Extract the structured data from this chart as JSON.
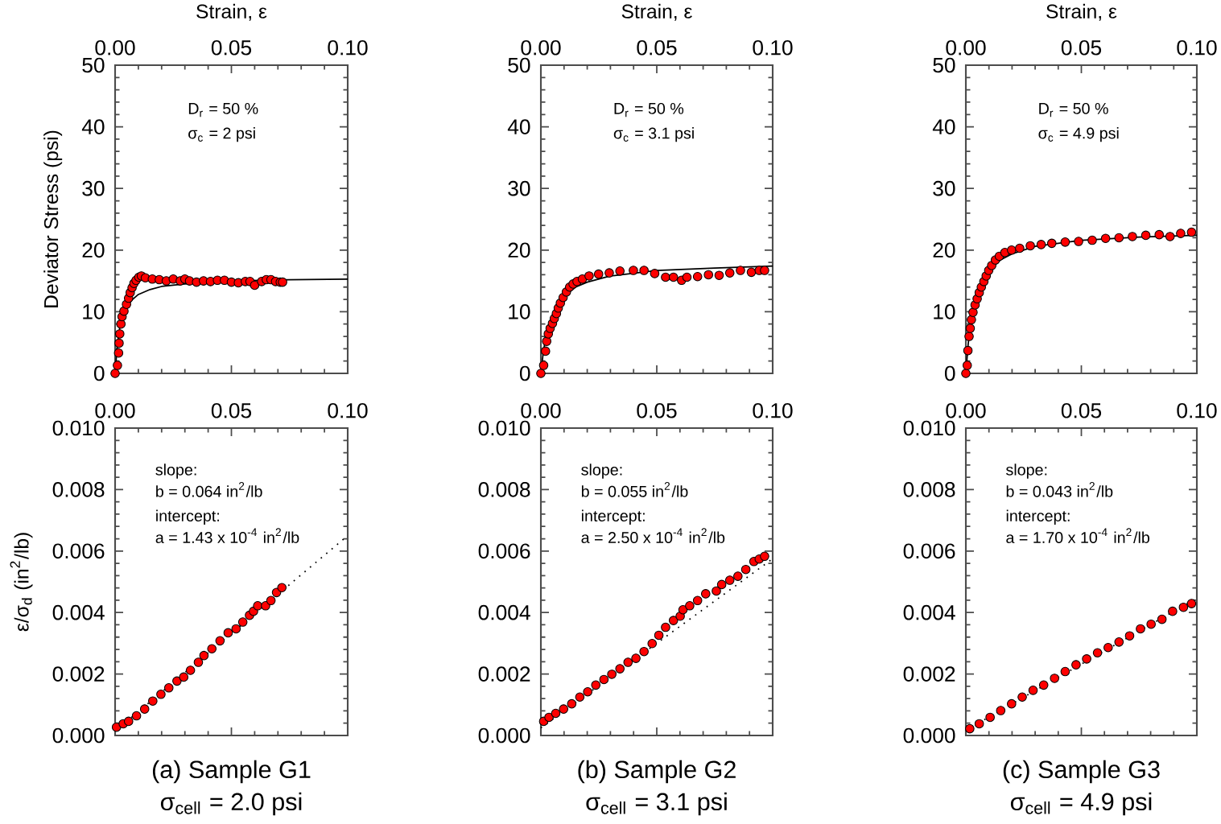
{
  "chart_data": [
    {
      "type": "scatter",
      "xlabel": "Strain, ε",
      "ylabel": "Deviator Stress (psi)",
      "xlim": [
        0,
        0.1
      ],
      "ylim": [
        0,
        50
      ],
      "xticks": [
        {
          "value": 0,
          "label": "0.00"
        },
        {
          "value": 0.05,
          "label": "0.05"
        },
        {
          "value": 0.1,
          "label": "0.10"
        }
      ],
      "yticks": [
        0,
        10,
        20,
        30,
        40,
        50
      ],
      "annotations": [
        "D$_{r}$ = 50 %",
        "σ$_{c}$ = 2 psi"
      ],
      "series": [
        {
          "type": "line",
          "marker": "none",
          "color": "#000000",
          "line_style": "solid",
          "x": [
            0,
            0.001,
            0.002,
            0.003,
            0.005,
            0.0075,
            0.01,
            0.015,
            0.02,
            0.03,
            0.05,
            0.075,
            0.1
          ],
          "values": [
            0,
            4.8,
            7.4,
            9.0,
            10.8,
            12.0,
            12.8,
            13.6,
            14.1,
            14.5,
            15.0,
            15.2,
            15.3
          ]
        },
        {
          "color": "#ff0000",
          "x": [
            0,
            0.001,
            0.0015,
            0.0017,
            0.002,
            0.0025,
            0.003,
            0.0038,
            0.0049,
            0.0058,
            0.0065,
            0.0073,
            0.0081,
            0.009,
            0.0102,
            0.0113,
            0.013,
            0.016,
            0.019,
            0.022,
            0.025,
            0.028,
            0.03,
            0.032,
            0.035,
            0.038,
            0.041,
            0.044,
            0.047,
            0.05,
            0.053,
            0.056,
            0.058,
            0.06,
            0.063,
            0.065,
            0.067,
            0.069,
            0.071,
            0.072
          ],
          "values": [
            0,
            1.3,
            3.3,
            4.9,
            6.4,
            8.0,
            9.2,
            10.1,
            11.2,
            12.2,
            13.1,
            13.9,
            14.6,
            15.1,
            15.6,
            15.8,
            15.5,
            15.3,
            15.2,
            15.0,
            15.3,
            15.0,
            15.3,
            15.0,
            14.8,
            15.0,
            14.9,
            15.1,
            15.1,
            14.8,
            14.7,
            14.9,
            14.9,
            14.3,
            14.9,
            15.2,
            15.2,
            14.9,
            14.8,
            14.8
          ]
        }
      ]
    },
    {
      "type": "scatter",
      "xlabel": "Strain, ε",
      "xlim": [
        0,
        0.1
      ],
      "ylim": [
        0,
        50
      ],
      "xticks": [
        {
          "value": 0,
          "label": "0.00"
        },
        {
          "value": 0.05,
          "label": "0.05"
        },
        {
          "value": 0.1,
          "label": "0.10"
        }
      ],
      "yticks": [
        0,
        10,
        20,
        30,
        40,
        50
      ],
      "annotations": [
        "D$_{r}$ = 50 %",
        "σ$_{c}$ = 3.1 psi"
      ],
      "series": [
        {
          "type": "line",
          "marker": "none",
          "color": "#000000",
          "line_style": "solid",
          "x": [
            0,
            0.001,
            0.002,
            0.003,
            0.005,
            0.0075,
            0.01,
            0.015,
            0.02,
            0.03,
            0.05,
            0.075,
            0.1
          ],
          "values": [
            0,
            3.3,
            5.6,
            7.2,
            9.5,
            11.3,
            12.5,
            14.0,
            14.8,
            15.8,
            16.7,
            17.1,
            17.4
          ]
        },
        {
          "color": "#ff0000",
          "x": [
            0,
            0.0012,
            0.002,
            0.0025,
            0.0032,
            0.004,
            0.005,
            0.0058,
            0.0067,
            0.0075,
            0.0084,
            0.0096,
            0.011,
            0.0124,
            0.0139,
            0.0156,
            0.0179,
            0.0208,
            0.0249,
            0.0295,
            0.0341,
            0.0399,
            0.0445,
            0.0491,
            0.0538,
            0.0572,
            0.0607,
            0.063,
            0.0676,
            0.0723,
            0.0769,
            0.0815,
            0.0861,
            0.0908,
            0.0942,
            0.0965
          ],
          "values": [
            0,
            1.3,
            3.6,
            5.2,
            6.4,
            7.3,
            8.1,
            8.9,
            9.7,
            10.6,
            11.4,
            12.3,
            13.2,
            14.0,
            14.5,
            14.9,
            15.3,
            15.8,
            16.1,
            16.3,
            16.6,
            16.7,
            16.7,
            16.2,
            15.6,
            15.6,
            15.1,
            15.6,
            15.7,
            16.0,
            15.9,
            16.3,
            16.7,
            16.4,
            16.7,
            16.7
          ]
        }
      ]
    },
    {
      "type": "scatter",
      "xlabel": "Strain, ε",
      "xlim": [
        0,
        0.1
      ],
      "ylim": [
        0,
        50
      ],
      "xticks": [
        {
          "value": 0,
          "label": "0.00"
        },
        {
          "value": 0.05,
          "label": "0.05"
        },
        {
          "value": 0.1,
          "label": "0.10"
        }
      ],
      "yticks": [
        0,
        10,
        20,
        30,
        40,
        50
      ],
      "annotations": [
        "D$_{r}$ = 50 %",
        "σ$_{c}$ = 4.9 psi"
      ],
      "series": [
        {
          "type": "line",
          "marker": "none",
          "color": "#000000",
          "line_style": "solid",
          "x": [
            0,
            0.001,
            0.002,
            0.003,
            0.005,
            0.0075,
            0.01,
            0.015,
            0.02,
            0.03,
            0.05,
            0.075,
            0.1
          ],
          "values": [
            0,
            4.7,
            7.8,
            10.0,
            13.0,
            15.2,
            16.7,
            18.4,
            19.4,
            20.6,
            21.6,
            22.1,
            22.4
          ]
        },
        {
          "color": "#ff0000",
          "x": [
            0,
            0.0006,
            0.0009,
            0.0014,
            0.0019,
            0.0024,
            0.0031,
            0.004,
            0.0049,
            0.0058,
            0.0067,
            0.0078,
            0.0088,
            0.0099,
            0.0112,
            0.0128,
            0.0145,
            0.0169,
            0.0198,
            0.0233,
            0.0279,
            0.0326,
            0.0372,
            0.043,
            0.0488,
            0.0547,
            0.0605,
            0.0663,
            0.0721,
            0.0779,
            0.0837,
            0.0884,
            0.093,
            0.0977
          ],
          "values": [
            0,
            1.3,
            3.7,
            6.0,
            7.3,
            8.7,
            9.9,
            11.1,
            12.1,
            13.1,
            14.0,
            14.9,
            15.8,
            16.7,
            17.5,
            18.4,
            19.0,
            19.6,
            20.0,
            20.3,
            20.7,
            20.9,
            21.1,
            21.3,
            21.4,
            21.6,
            21.9,
            22.0,
            22.2,
            22.4,
            22.5,
            22.2,
            22.7,
            22.9
          ]
        }
      ]
    },
    {
      "type": "scatter",
      "ylabel": "ε/σ$_{d}$ (in$^{2}$/lb)",
      "title": "(a) Sample G1",
      "subtitle": "σ$_{cell}$ = 2.0 psi",
      "xlim": [
        0,
        0.1
      ],
      "ylim": [
        0,
        0.01
      ],
      "xticks": [
        {
          "value": 0,
          "label": "0.00"
        },
        {
          "value": 0.05,
          "label": "0.05"
        },
        {
          "value": 0.1,
          "label": "0.10"
        }
      ],
      "yticks": [
        {
          "value": 0,
          "label": "0.000"
        },
        {
          "value": 0.002,
          "label": "0.002"
        },
        {
          "value": 0.004,
          "label": "0.004"
        },
        {
          "value": 0.006,
          "label": "0.006"
        },
        {
          "value": 0.008,
          "label": "0.008"
        },
        {
          "value": 0.01,
          "label": "0.010"
        }
      ],
      "annotations": [
        "slope:",
        "b = 0.064 in$^{2}$/lb",
        "intercept:",
        "a = 1.43 x 10$^{-4}$ in$^{2}$/lb"
      ],
      "series": [
        {
          "type": "line",
          "marker": "none",
          "color": "#000000",
          "line_style": "dotted",
          "x": [
            0,
            0.1
          ],
          "values": [
            0.00014,
            0.0065
          ]
        },
        {
          "color": "#ff0000",
          "x": [
            0.0006,
            0.0035,
            0.0058,
            0.0092,
            0.0127,
            0.0162,
            0.0197,
            0.0231,
            0.0266,
            0.0295,
            0.0324,
            0.0358,
            0.0382,
            0.0416,
            0.0451,
            0.0486,
            0.052,
            0.0549,
            0.0578,
            0.0595,
            0.0613,
            0.0647,
            0.067,
            0.0694,
            0.0717
          ],
          "values": [
            0.00027,
            0.00038,
            0.00046,
            0.00064,
            0.00086,
            0.00112,
            0.00134,
            0.00155,
            0.00177,
            0.0019,
            0.00212,
            0.00238,
            0.0026,
            0.00282,
            0.00308,
            0.00334,
            0.00347,
            0.00369,
            0.00391,
            0.00404,
            0.00422,
            0.00422,
            0.00439,
            0.00465,
            0.00481
          ]
        }
      ]
    },
    {
      "type": "scatter",
      "title": "(b) Sample G2",
      "subtitle": "σ$_{cell}$ = 3.1 psi",
      "xlim": [
        0,
        0.1
      ],
      "ylim": [
        0,
        0.01
      ],
      "xticks": [
        {
          "value": 0,
          "label": "0.00"
        },
        {
          "value": 0.05,
          "label": "0.05"
        },
        {
          "value": 0.1,
          "label": "0.10"
        }
      ],
      "yticks": [
        {
          "value": 0,
          "label": "0.000"
        },
        {
          "value": 0.002,
          "label": "0.002"
        },
        {
          "value": 0.004,
          "label": "0.004"
        },
        {
          "value": 0.006,
          "label": "0.006"
        },
        {
          "value": 0.008,
          "label": "0.008"
        },
        {
          "value": 0.01,
          "label": "0.010"
        }
      ],
      "annotations": [
        "slope:",
        "b = 0.055 in$^{2}$/lb",
        "intercept:",
        "a = 2.50 x 10$^{-4}$ in$^{2}$/lb"
      ],
      "series": [
        {
          "type": "line",
          "marker": "none",
          "color": "#000000",
          "line_style": "dotted",
          "x": [
            0,
            0.1
          ],
          "values": [
            0.00025,
            0.00575
          ]
        },
        {
          "color": "#ff0000",
          "x": [
            0.0012,
            0.0035,
            0.0064,
            0.0098,
            0.0133,
            0.0168,
            0.0202,
            0.0237,
            0.0272,
            0.0306,
            0.0341,
            0.0376,
            0.041,
            0.0445,
            0.048,
            0.0509,
            0.0538,
            0.0572,
            0.0601,
            0.0613,
            0.0642,
            0.0676,
            0.0711,
            0.0757,
            0.078,
            0.0815,
            0.085,
            0.0884,
            0.0919,
            0.0942,
            0.0965
          ],
          "values": [
            0.00046,
            0.00059,
            0.00072,
            0.00086,
            0.00103,
            0.00125,
            0.00142,
            0.00164,
            0.00182,
            0.00199,
            0.00217,
            0.00238,
            0.00251,
            0.00273,
            0.00299,
            0.00326,
            0.00352,
            0.00374,
            0.00388,
            0.00409,
            0.00422,
            0.00439,
            0.00461,
            0.0047,
            0.00491,
            0.00505,
            0.00518,
            0.0054,
            0.00566,
            0.00574,
            0.00583
          ]
        }
      ]
    },
    {
      "type": "scatter",
      "title": "(c) Sample G3",
      "subtitle": "σ$_{cell}$ = 4.9 psi",
      "xlim": [
        0,
        0.1
      ],
      "ylim": [
        0,
        0.01
      ],
      "xticks": [
        {
          "value": 0,
          "label": "0.00"
        },
        {
          "value": 0.05,
          "label": "0.05"
        },
        {
          "value": 0.1,
          "label": "0.10"
        }
      ],
      "yticks": [
        {
          "value": 0,
          "label": "0.000"
        },
        {
          "value": 0.002,
          "label": "0.002"
        },
        {
          "value": 0.004,
          "label": "0.004"
        },
        {
          "value": 0.006,
          "label": "0.006"
        },
        {
          "value": 0.008,
          "label": "0.008"
        },
        {
          "value": 0.01,
          "label": "0.010"
        }
      ],
      "annotations": [
        "slope:",
        "b = 0.043 in$^{2}$/lb",
        "intercept:",
        "a = 1.70 x 10$^{-4}$ in$^{2}$/lb"
      ],
      "series": [
        {
          "type": "line",
          "marker": "none",
          "color": "#000000",
          "line_style": "dotted",
          "x": [
            0,
            0.1
          ],
          "values": [
            0.00017,
            0.00447
          ]
        },
        {
          "color": "#ff0000",
          "x": [
            0.0017,
            0.0058,
            0.0105,
            0.0151,
            0.0198,
            0.0244,
            0.0291,
            0.0337,
            0.0384,
            0.043,
            0.0477,
            0.0523,
            0.057,
            0.0616,
            0.0663,
            0.0709,
            0.0756,
            0.0802,
            0.0849,
            0.0895,
            0.0942,
            0.0977
          ],
          "values": [
            0.00022,
            0.00038,
            0.00059,
            0.00081,
            0.00103,
            0.00125,
            0.00147,
            0.00164,
            0.00186,
            0.00208,
            0.0023,
            0.00249,
            0.00269,
            0.00286,
            0.00304,
            0.00324,
            0.00347,
            0.00362,
            0.00378,
            0.00404,
            0.00417,
            0.00429
          ]
        }
      ]
    }
  ]
}
